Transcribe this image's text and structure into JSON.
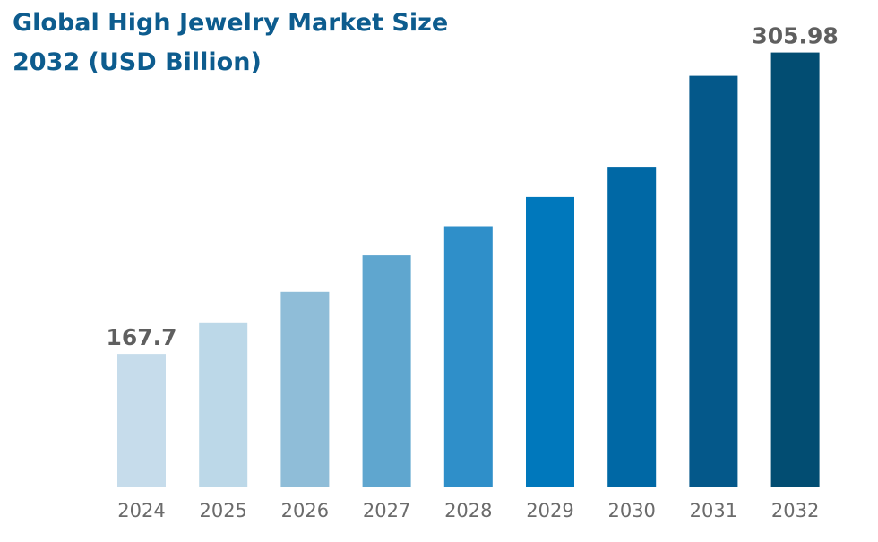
{
  "chart_data": {
    "type": "bar",
    "title": "Global High Jewelry Market Size 2032 (USD Billion)",
    "categories": [
      "2024",
      "2025",
      "2026",
      "2027",
      "2028",
      "2029",
      "2030",
      "2031",
      "2032"
    ],
    "values": [
      167.7,
      182.2,
      196.2,
      212.9,
      226.3,
      239.7,
      253.6,
      295.3,
      305.98
    ],
    "data_labels": [
      {
        "category": "2024",
        "text": "167.7"
      },
      {
        "category": "2032",
        "text": "305.98"
      }
    ],
    "xlabel": "",
    "ylabel": "",
    "ylim": [
      106.5,
      312
    ],
    "grid": false,
    "legend": "none",
    "bar_colors": [
      "#c6dceb",
      "#bcd8e8",
      "#8fbdd8",
      "#5fa6cf",
      "#2f8fc9",
      "#0078bc",
      "#0068a5",
      "#04588a",
      "#024d72"
    ]
  }
}
